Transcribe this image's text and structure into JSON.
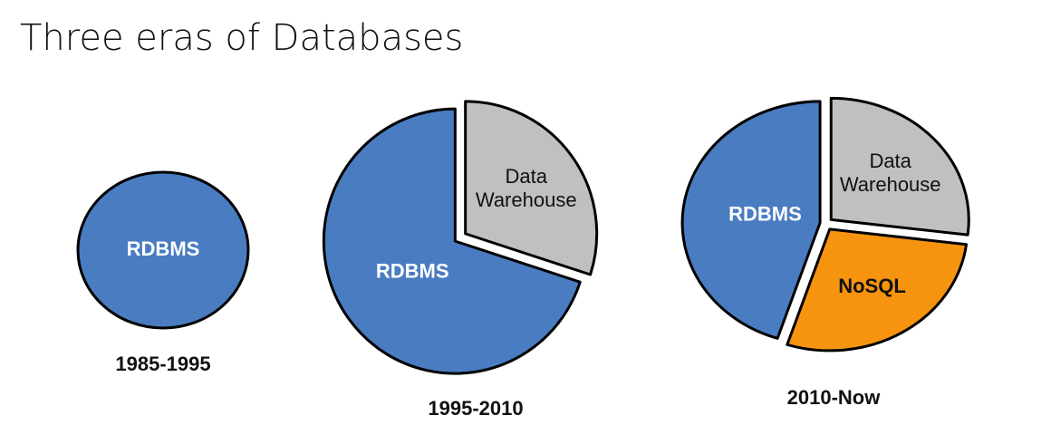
{
  "title": "Three eras of Databases",
  "chart_data": [
    {
      "type": "pie",
      "title": "1985-1995",
      "categories": [
        "RDBMS"
      ],
      "values": [
        100
      ],
      "colors": [
        "#4a7cc1"
      ]
    },
    {
      "type": "pie",
      "title": "1995-2010",
      "categories": [
        "Data Warehouse",
        "RDBMS"
      ],
      "values": [
        30,
        70
      ],
      "colors": [
        "#c0c0c0",
        "#4a7cc1"
      ]
    },
    {
      "type": "pie",
      "title": "2010-Now",
      "categories": [
        "Data Warehouse",
        "NoSQL",
        "RDBMS"
      ],
      "values": [
        27,
        28,
        45
      ],
      "colors": [
        "#c0c0c0",
        "#f7940f",
        "#4a7cc1"
      ]
    }
  ]
}
